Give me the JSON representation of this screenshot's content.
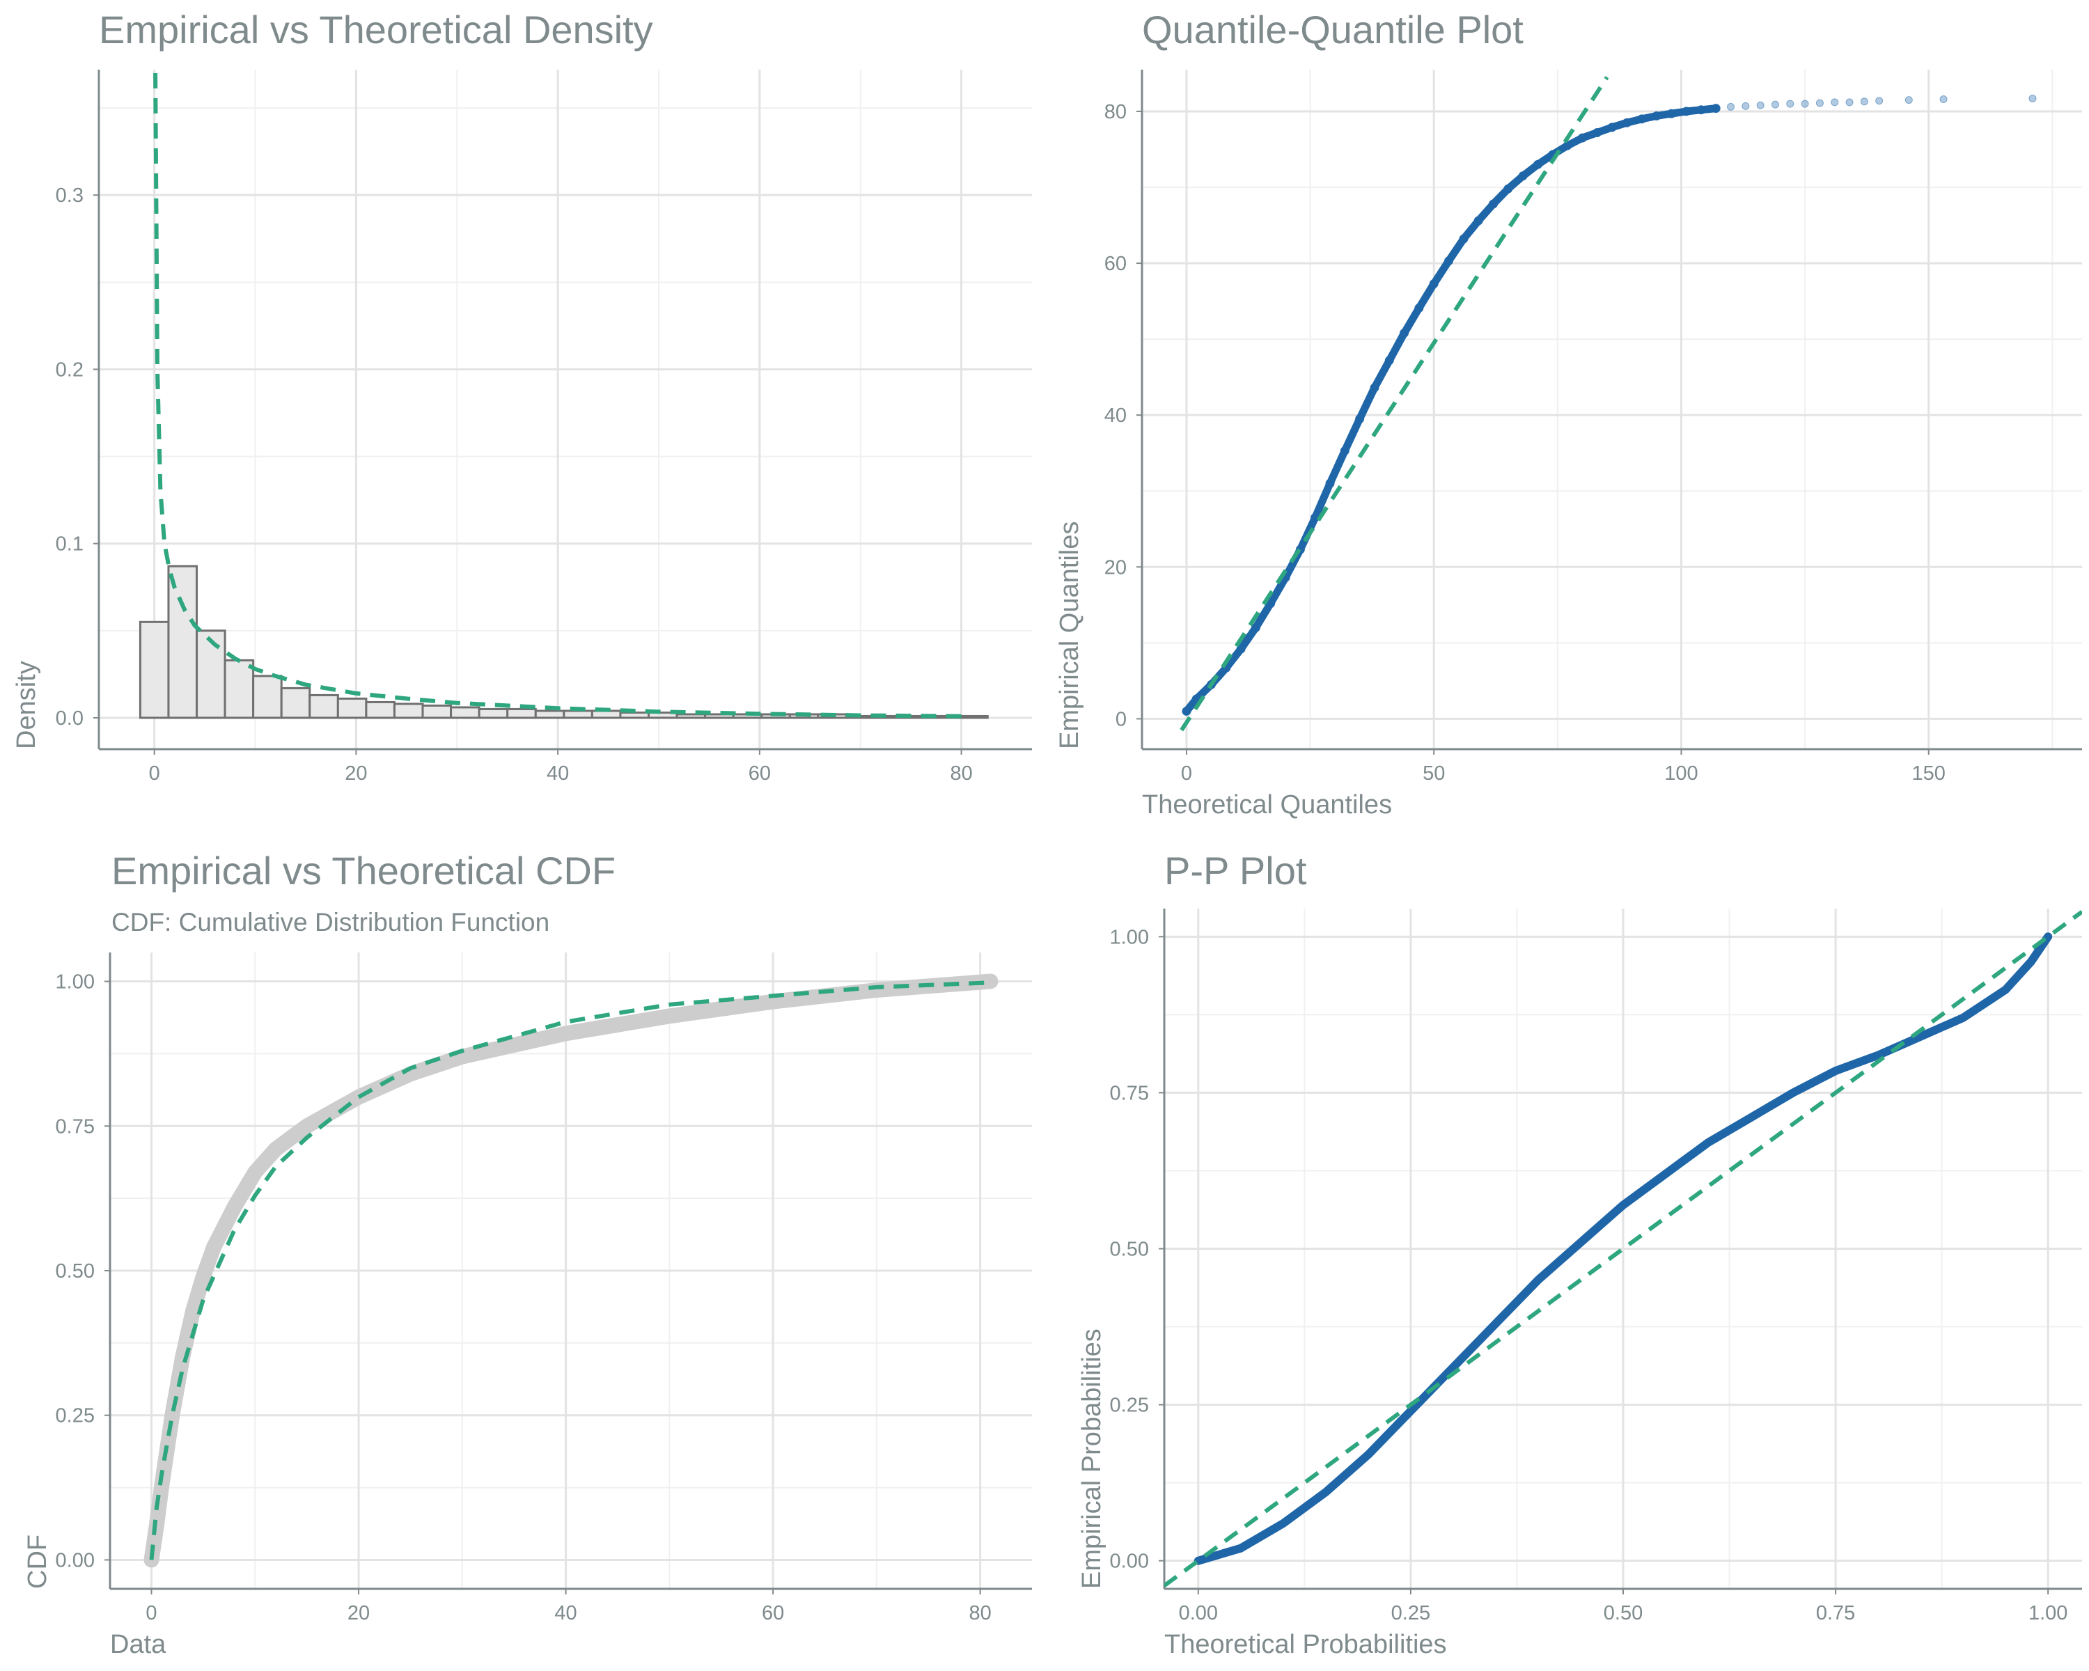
{
  "figure": {
    "colors": {
      "text": "#7f8a8c",
      "axis": "#7f8a8c",
      "grid_major": "#e3e3e3",
      "grid_minor": "#f0f0f0",
      "fit_line": "#2ea67f",
      "empirical_points": "#1f66a8",
      "hist_fill": "#e8e8e8",
      "hist_stroke": "#707070",
      "empirical_cdf": "#cdcdcd"
    }
  },
  "chart_data": [
    {
      "id": "density",
      "type": "histogram",
      "title": "Empirical vs Theoretical Density",
      "subtitle": "",
      "xlabel": "",
      "ylabel": "Density",
      "xlim": [
        -5.5,
        87
      ],
      "ylim": [
        -0.018,
        0.372
      ],
      "xticks": [
        0,
        20,
        40,
        60,
        80
      ],
      "xtick_labels": [
        "0",
        "20",
        "40",
        "60",
        "80"
      ],
      "yticks": [
        0,
        0.1,
        0.2,
        0.3
      ],
      "ytick_labels": [
        "0.0",
        "0.1",
        "0.2",
        "0.3"
      ],
      "bin_edges": [
        -1.4,
        1.4,
        4.2,
        7.0,
        9.8,
        12.6,
        15.4,
        18.2,
        21.0,
        23.8,
        26.6,
        29.4,
        32.2,
        35.0,
        37.8,
        40.6,
        43.4,
        46.2,
        49.0,
        51.8,
        54.6,
        57.4,
        60.2,
        63.0,
        65.8,
        68.6,
        71.4,
        74.2,
        77.0,
        79.8,
        82.6
      ],
      "bin_values": [
        0.055,
        0.087,
        0.05,
        0.033,
        0.024,
        0.017,
        0.013,
        0.011,
        0.009,
        0.008,
        0.007,
        0.006,
        0.005,
        0.005,
        0.004,
        0.004,
        0.004,
        0.003,
        0.003,
        0.002,
        0.002,
        0.002,
        0.002,
        0.002,
        0.002,
        0.001,
        0.001,
        0.001,
        0.001,
        0.001
      ],
      "fit_curve": {
        "x": [
          0.1,
          0.3,
          0.6,
          1.0,
          1.5,
          2.0,
          3.0,
          4.0,
          6.0,
          8.0,
          10,
          12,
          15,
          20,
          25,
          30,
          40,
          50,
          60,
          70,
          80
        ],
        "y": [
          0.37,
          0.2,
          0.13,
          0.1,
          0.085,
          0.075,
          0.062,
          0.053,
          0.042,
          0.034,
          0.028,
          0.024,
          0.019,
          0.014,
          0.011,
          0.0085,
          0.0055,
          0.0035,
          0.0023,
          0.0014,
          0.0009
        ]
      }
    },
    {
      "id": "qq",
      "type": "scatter",
      "title": "Quantile-Quantile Plot",
      "subtitle": "",
      "xlabel": "Theoretical Quantiles",
      "ylabel": "Empirical Quantiles",
      "xlim": [
        -9,
        181
      ],
      "ylim": [
        -4,
        85.5
      ],
      "xticks": [
        0,
        50,
        100,
        150
      ],
      "xtick_labels": [
        "0",
        "50",
        "100",
        "150"
      ],
      "yticks": [
        0,
        20,
        40,
        60,
        80
      ],
      "ytick_labels": [
        "0",
        "20",
        "40",
        "60",
        "80"
      ],
      "points": {
        "x": [
          0,
          2,
          5,
          8,
          11,
          14,
          17,
          20,
          23,
          26,
          29,
          32,
          35,
          38,
          41,
          44,
          47,
          50,
          53,
          56,
          59,
          62,
          65,
          68,
          71,
          74,
          77,
          80,
          83,
          86,
          89,
          92,
          95,
          98,
          101,
          104,
          107,
          110,
          113,
          116,
          119,
          122,
          125,
          128,
          131,
          134,
          137,
          140,
          146,
          153,
          171
        ],
        "y": [
          1,
          2.6,
          4.5,
          6.7,
          9.2,
          12,
          15.2,
          18.6,
          22.3,
          26.5,
          31,
          35.3,
          39.5,
          43.6,
          47.2,
          50.8,
          54.1,
          57.3,
          60.3,
          63.2,
          65.6,
          67.8,
          69.8,
          71.5,
          73,
          74.3,
          75.5,
          76.5,
          77.2,
          77.9,
          78.5,
          79,
          79.4,
          79.7,
          80,
          80.2,
          80.4,
          80.6,
          80.7,
          80.8,
          80.9,
          81,
          81,
          81.1,
          81.2,
          81.2,
          81.3,
          81.4,
          81.5,
          81.6,
          81.7
        ]
      },
      "reference_line": {
        "x": [
          -1,
          85
        ],
        "y": [
          -1.5,
          84.5
        ]
      }
    },
    {
      "id": "cdf",
      "type": "line",
      "title": "Empirical vs Theoretical CDF",
      "subtitle": "CDF: Cumulative Distribution Function",
      "xlabel": "Data",
      "ylabel": "CDF",
      "xlim": [
        -4,
        85
      ],
      "ylim": [
        -0.05,
        1.05
      ],
      "xticks": [
        0,
        20,
        40,
        60,
        80
      ],
      "xtick_labels": [
        "0",
        "20",
        "40",
        "60",
        "80"
      ],
      "yticks": [
        0,
        0.25,
        0.5,
        0.75,
        1
      ],
      "ytick_labels": [
        "0.00",
        "0.25",
        "0.50",
        "0.75",
        "1.00"
      ],
      "empirical": {
        "x": [
          0,
          0.5,
          1,
          2,
          3,
          4,
          5,
          6,
          8,
          10,
          12,
          15,
          20,
          25,
          30,
          40,
          50,
          60,
          70,
          81
        ],
        "y": [
          0,
          0.06,
          0.13,
          0.25,
          0.35,
          0.43,
          0.49,
          0.54,
          0.61,
          0.67,
          0.71,
          0.75,
          0.8,
          0.84,
          0.87,
          0.91,
          0.94,
          0.965,
          0.985,
          1.0
        ]
      },
      "theoretical": {
        "x": [
          0,
          0.5,
          1,
          2,
          3,
          4,
          5,
          6,
          8,
          10,
          12,
          15,
          20,
          25,
          30,
          40,
          50,
          60,
          70,
          81
        ],
        "y": [
          0,
          0.09,
          0.15,
          0.25,
          0.33,
          0.39,
          0.45,
          0.49,
          0.57,
          0.63,
          0.68,
          0.73,
          0.8,
          0.85,
          0.88,
          0.93,
          0.96,
          0.975,
          0.99,
          0.998
        ]
      }
    },
    {
      "id": "pp",
      "type": "line",
      "title": "P-P Plot",
      "subtitle": "",
      "xlabel": "Theoretical Probabilities",
      "ylabel": "Empirical Probabilities",
      "xlim": [
        -0.04,
        1.04
      ],
      "ylim": [
        -0.045,
        1.045
      ],
      "xticks": [
        0,
        0.25,
        0.5,
        0.75,
        1
      ],
      "xtick_labels": [
        "0.00",
        "0.25",
        "0.50",
        "0.75",
        "1.00"
      ],
      "yticks": [
        0,
        0.25,
        0.5,
        0.75,
        1
      ],
      "ytick_labels": [
        "0.00",
        "0.25",
        "0.50",
        "0.75",
        "1.00"
      ],
      "curve": {
        "x": [
          0,
          0.05,
          0.1,
          0.15,
          0.2,
          0.25,
          0.3,
          0.35,
          0.4,
          0.45,
          0.5,
          0.55,
          0.6,
          0.65,
          0.7,
          0.75,
          0.8,
          0.85,
          0.9,
          0.95,
          0.98,
          1.0
        ],
        "y": [
          0,
          0.02,
          0.06,
          0.11,
          0.17,
          0.24,
          0.31,
          0.38,
          0.45,
          0.51,
          0.57,
          0.62,
          0.67,
          0.71,
          0.75,
          0.785,
          0.81,
          0.84,
          0.87,
          0.915,
          0.96,
          1.0
        ]
      },
      "reference_line": {
        "x": [
          -0.04,
          1.04
        ],
        "y": [
          -0.04,
          1.04
        ]
      }
    }
  ]
}
